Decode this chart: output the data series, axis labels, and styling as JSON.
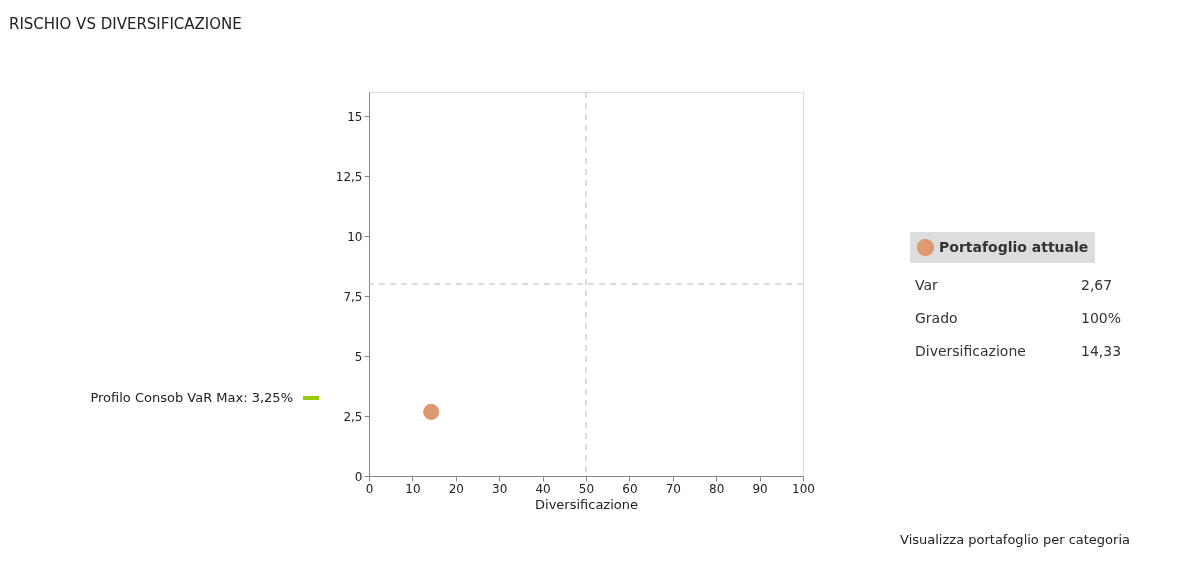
{
  "chart_data": {
    "type": "scatter",
    "title": "RISCHIO VS DIVERSIFICAZIONE",
    "xlabel": "Diversificazione",
    "series": [
      {
        "name": "Portafoglio attuale",
        "color": "#dd9a70",
        "x": [
          14.33
        ],
        "values": [
          2.67
        ]
      }
    ],
    "xlim": [
      0,
      100
    ],
    "xticks": [
      0,
      10,
      20,
      30,
      40,
      50,
      60,
      70,
      80,
      90,
      100
    ],
    "ylim": [
      0,
      16
    ],
    "yticks": [
      0,
      {
        "value": 2.5,
        "label": "2,5"
      },
      5,
      {
        "value": 7.5,
        "label": "7,5"
      },
      10,
      {
        "value": 12.5,
        "label": "12,5"
      },
      15
    ],
    "ref_lines": [
      {
        "axis": "x",
        "value": 50,
        "color": "#bbbbbb",
        "line_style": "dashed"
      },
      {
        "axis": "y",
        "value": 8,
        "color": "#bbbbbb",
        "line_style": "dashed"
      },
      {
        "axis": "y",
        "value": 3.25,
        "label": "Profilo Consob VaR Max: 3,25%",
        "color": "#99cc00",
        "line_style": "solid"
      }
    ],
    "annotations": [
      "Var",
      "2,67",
      "Grado",
      "100%",
      "Diversificazione",
      "14,33",
      "Visualizza portafoglio per categoria"
    ],
    "marker": "circle",
    "legend": "right",
    "grid": false
  }
}
